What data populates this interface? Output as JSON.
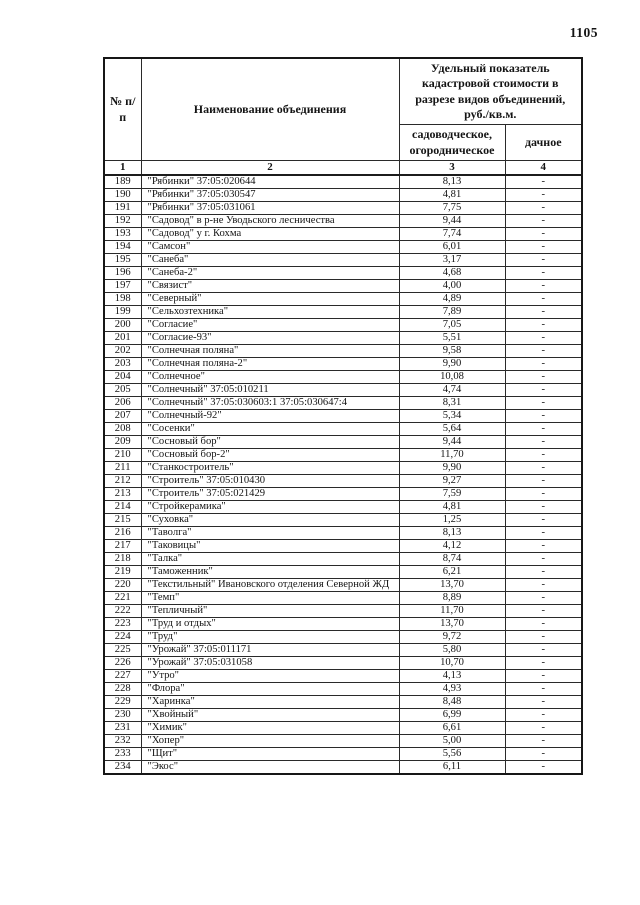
{
  "page": {
    "number": "1105"
  },
  "table": {
    "header": {
      "num_label": "№ п/п",
      "name_label": "Наименование объединения",
      "indicator_label": "Удельный показатель кадастровой стоимости  в разрезе видов  объединений, руб./кв.м.",
      "garden_label": "садоводческое, огородническое",
      "dacha_label": "дачное"
    },
    "numbering_row": [
      "1",
      "2",
      "3",
      "4"
    ],
    "rows": [
      {
        "num": "189",
        "name": "\"Рябинки\" 37:05:020644",
        "garden": "8,13",
        "dacha": "-"
      },
      {
        "num": "190",
        "name": "\"Рябинки\" 37:05:030547",
        "garden": "4,81",
        "dacha": "-"
      },
      {
        "num": "191",
        "name": "\"Рябинки\" 37:05:031061",
        "garden": "7,75",
        "dacha": "-"
      },
      {
        "num": "192",
        "name": "\"Садовод\" в р-не Уводьского лесничества",
        "garden": "9,44",
        "dacha": "-"
      },
      {
        "num": "193",
        "name": "\"Садовод\" у г. Кохма",
        "garden": "7,74",
        "dacha": "-"
      },
      {
        "num": "194",
        "name": "\"Самсон\"",
        "garden": "6,01",
        "dacha": "-"
      },
      {
        "num": "195",
        "name": "\"Санеба\"",
        "garden": "3,17",
        "dacha": "-"
      },
      {
        "num": "196",
        "name": "\"Санеба-2\"",
        "garden": "4,68",
        "dacha": "-"
      },
      {
        "num": "197",
        "name": "\"Связист\"",
        "garden": "4,00",
        "dacha": "-"
      },
      {
        "num": "198",
        "name": "\"Северный\"",
        "garden": "4,89",
        "dacha": "-"
      },
      {
        "num": "199",
        "name": "\"Сельхозтехника\"",
        "garden": "7,89",
        "dacha": "-"
      },
      {
        "num": "200",
        "name": "\"Согласие\"",
        "garden": "7,05",
        "dacha": "-"
      },
      {
        "num": "201",
        "name": "\"Согласие-93\"",
        "garden": "5,51",
        "dacha": "-"
      },
      {
        "num": "202",
        "name": "\"Солнечная поляна\"",
        "garden": "9,58",
        "dacha": "-"
      },
      {
        "num": "203",
        "name": "\"Солнечная поляна-2\"",
        "garden": "9,90",
        "dacha": "-"
      },
      {
        "num": "204",
        "name": "\"Солнечное\"",
        "garden": "10,08",
        "dacha": "-"
      },
      {
        "num": "205",
        "name": "\"Солнечный\" 37:05:010211",
        "garden": "4,74",
        "dacha": "-"
      },
      {
        "num": "206",
        "name": "\"Солнечный\" 37:05:030603:1 37:05:030647:4",
        "garden": "8,31",
        "dacha": "-"
      },
      {
        "num": "207",
        "name": "\"Солнечный-92\"",
        "garden": "5,34",
        "dacha": "-"
      },
      {
        "num": "208",
        "name": "\"Сосенки\"",
        "garden": "5,64",
        "dacha": "-"
      },
      {
        "num": "209",
        "name": "\"Сосновый бор\"",
        "garden": "9,44",
        "dacha": "-"
      },
      {
        "num": "210",
        "name": "\"Сосновый бор-2\"",
        "garden": "11,70",
        "dacha": "-"
      },
      {
        "num": "211",
        "name": "\"Станкостроитель\"",
        "garden": "9,90",
        "dacha": "-"
      },
      {
        "num": "212",
        "name": "\"Строитель\" 37:05:010430",
        "garden": "9,27",
        "dacha": "-"
      },
      {
        "num": "213",
        "name": "\"Строитель\" 37:05:021429",
        "garden": "7,59",
        "dacha": "-"
      },
      {
        "num": "214",
        "name": "\"Стройкерамика\"",
        "garden": "4,81",
        "dacha": "-"
      },
      {
        "num": "215",
        "name": "\"Суховка\"",
        "garden": "1,25",
        "dacha": "-"
      },
      {
        "num": "216",
        "name": "\"Таволга\"",
        "garden": "8,13",
        "dacha": "-"
      },
      {
        "num": "217",
        "name": "\"Таковицы\"",
        "garden": "4,12",
        "dacha": "-"
      },
      {
        "num": "218",
        "name": "\"Талка\"",
        "garden": "8,74",
        "dacha": "-"
      },
      {
        "num": "219",
        "name": "\"Таможенник\"",
        "garden": "6,21",
        "dacha": "-"
      },
      {
        "num": "220",
        "name": "\"Текстильный\" Ивановского отделения Северной ЖД",
        "garden": "13,70",
        "dacha": "-"
      },
      {
        "num": "221",
        "name": "\"Темп\"",
        "garden": "8,89",
        "dacha": "-"
      },
      {
        "num": "222",
        "name": "\"Тепличный\"",
        "garden": "11,70",
        "dacha": "-"
      },
      {
        "num": "223",
        "name": "\"Труд и отдых\"",
        "garden": "13,70",
        "dacha": "-"
      },
      {
        "num": "224",
        "name": "\"Труд\"",
        "garden": "9,72",
        "dacha": "-"
      },
      {
        "num": "225",
        "name": "\"Урожай\" 37:05:011171",
        "garden": "5,80",
        "dacha": "-"
      },
      {
        "num": "226",
        "name": "\"Урожай\" 37:05:031058",
        "garden": "10,70",
        "dacha": "-"
      },
      {
        "num": "227",
        "name": "\"Утро\"",
        "garden": "4,13",
        "dacha": "-"
      },
      {
        "num": "228",
        "name": "\"Флора\"",
        "garden": "4,93",
        "dacha": "-"
      },
      {
        "num": "229",
        "name": "\"Харинка\"",
        "garden": "8,48",
        "dacha": "-"
      },
      {
        "num": "230",
        "name": "\"Хвойный\"",
        "garden": "6,99",
        "dacha": "-"
      },
      {
        "num": "231",
        "name": "\"Химик\"",
        "garden": "6,61",
        "dacha": "-"
      },
      {
        "num": "232",
        "name": "\"Хопер\"",
        "garden": "5,00",
        "dacha": "-"
      },
      {
        "num": "233",
        "name": "\"Щит\"",
        "garden": "5,56",
        "dacha": "-"
      },
      {
        "num": "234",
        "name": "\"Экос\"",
        "garden": "6,11",
        "dacha": "-"
      }
    ]
  }
}
